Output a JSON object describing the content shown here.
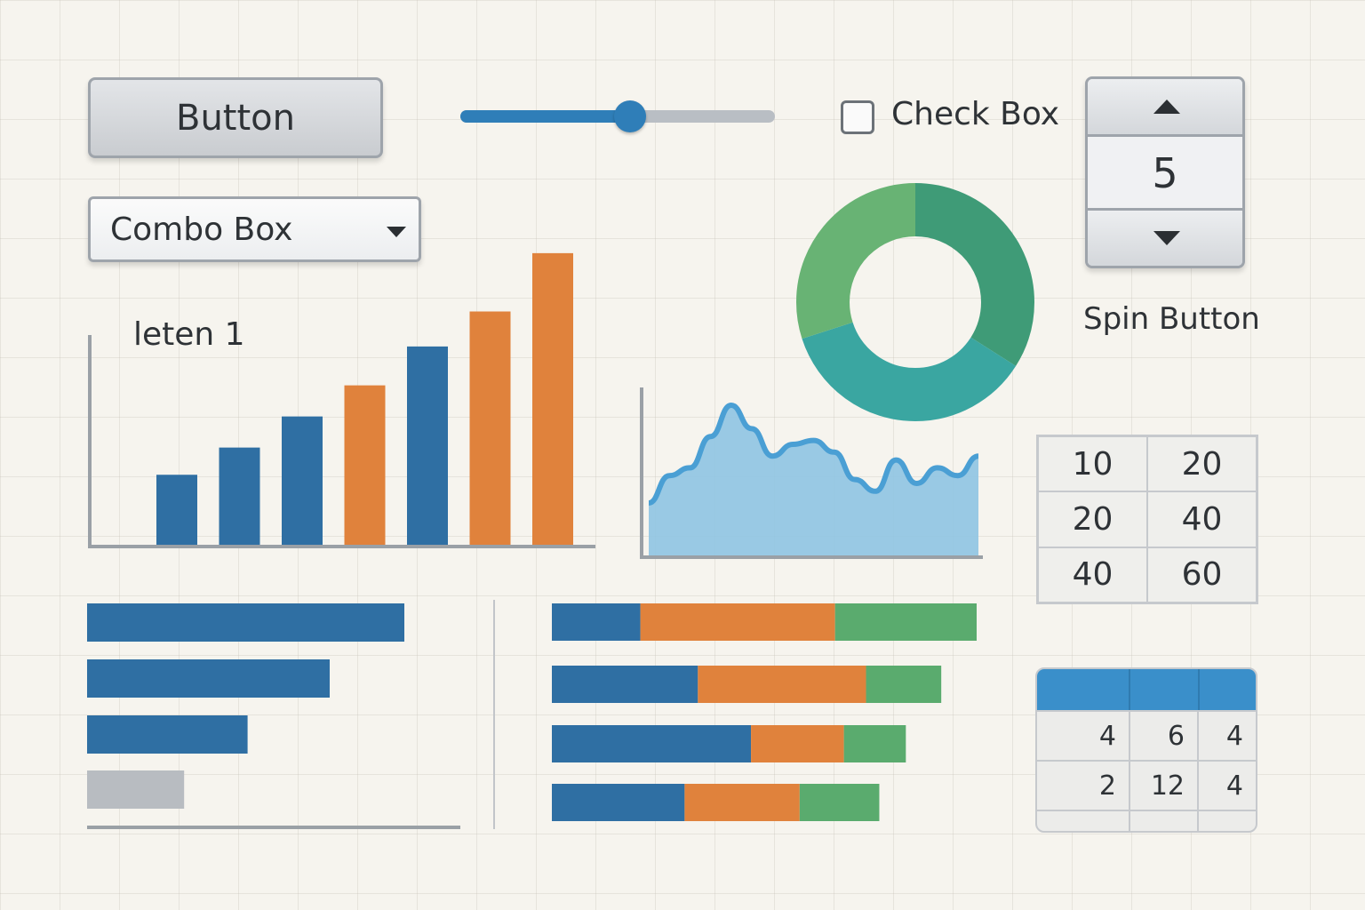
{
  "button": {
    "label": "Button"
  },
  "slider": {
    "value": 0.54
  },
  "checkbox": {
    "label": "Check Box",
    "checked": false
  },
  "spin": {
    "value": "5",
    "label": "Spin Button"
  },
  "combo": {
    "value": "Combo Box"
  },
  "colors": {
    "blue": "#2f6fa3",
    "orange": "#e0823c",
    "green": "#5aab6e",
    "gray": "#b8bcc1",
    "area_fill": "#8fc4e2",
    "area_line": "#4a9fd4",
    "donut": [
      "#3f9b77",
      "#3aa6a1",
      "#68b374"
    ]
  },
  "chart_data": [
    {
      "type": "bar",
      "title": "leten 1",
      "values": [
        18,
        25,
        33,
        41,
        51,
        60,
        75
      ],
      "colors": [
        "blue",
        "blue",
        "blue",
        "orange",
        "blue",
        "orange",
        "orange"
      ],
      "ylim": [
        0,
        80
      ]
    },
    {
      "type": "area",
      "values": [
        5,
        12,
        14,
        22,
        30,
        24,
        17,
        20,
        21,
        18,
        11,
        8,
        16,
        10,
        14,
        12,
        17
      ]
    },
    {
      "type": "pie",
      "donut": true,
      "values": [
        34,
        36,
        30
      ]
    },
    {
      "type": "bar",
      "orientation": "horizontal",
      "values": [
        85,
        65,
        43,
        26
      ],
      "colors": [
        "blue",
        "blue",
        "blue",
        "gray"
      ],
      "xlim": [
        0,
        100
      ]
    },
    {
      "type": "bar",
      "orientation": "horizontal",
      "stacked": true,
      "series": [
        {
          "values": [
            20,
            33,
            45,
            30
          ]
        },
        {
          "values": [
            44,
            38,
            21,
            26
          ]
        },
        {
          "values": [
            32,
            17,
            14,
            18
          ]
        }
      ],
      "xlim": [
        0,
        96
      ]
    }
  ],
  "number_grid": [
    [
      "10",
      "20"
    ],
    [
      "20",
      "40"
    ],
    [
      "40",
      "60"
    ]
  ],
  "table": {
    "rows": [
      [
        "4",
        "6",
        "4"
      ],
      [
        "2",
        "12",
        "4"
      ]
    ]
  }
}
